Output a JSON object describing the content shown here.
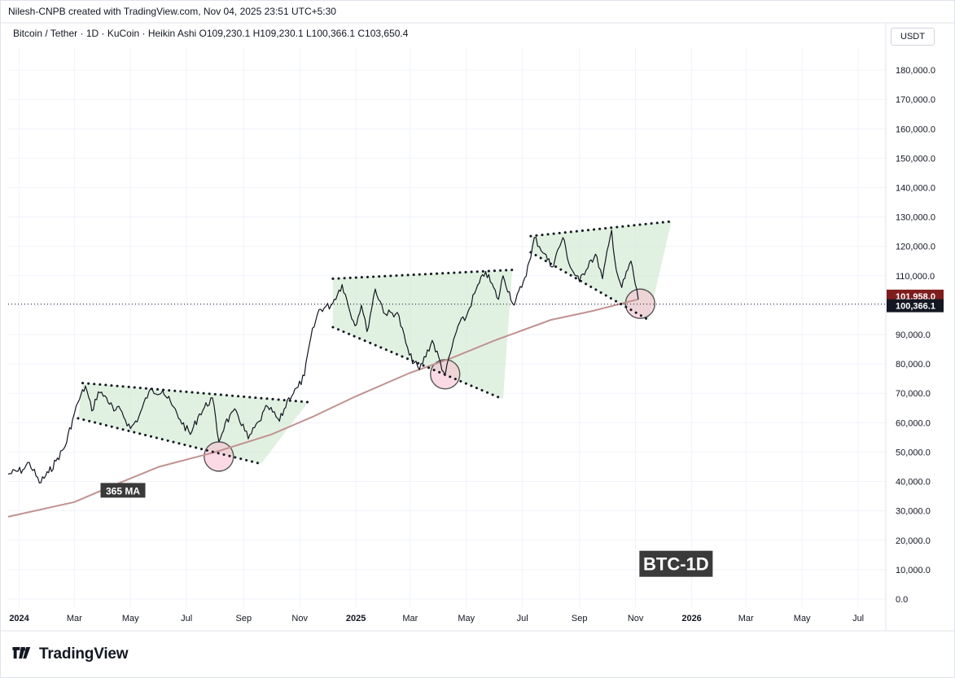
{
  "header": {
    "creator": "Nilesh-CNPB created with TradingView.com, Nov 04, 2025 23:51 UTC+5:30",
    "symbol_line": "Bitcoin / Tether · 1D · KuCoin · Heikin Ashi  O109,230.1  H109,230.1  L100,366.1  C103,650.4",
    "currency": "USDT"
  },
  "footer": {
    "brand": "TradingView"
  },
  "chart_data": {
    "type": "line",
    "title": "Bitcoin / Tether · 1D · KuCoin · Heikin Ashi",
    "ylim": [
      0,
      185000
    ],
    "xlim": [
      "2023-12-20",
      "2026-07-31"
    ],
    "y_ticks": [
      0,
      10000,
      20000,
      30000,
      40000,
      50000,
      60000,
      70000,
      80000,
      90000,
      100000,
      110000,
      120000,
      130000,
      140000,
      150000,
      160000,
      170000,
      180000
    ],
    "y_tick_labels": [
      "0.0",
      "10,000.0",
      "20,000.0",
      "30,000.0",
      "40,000.0",
      "50,000.0",
      "60,000.0",
      "70,000.0",
      "80,000.0",
      "90,000.0",
      "110,000.0",
      "120,000.0",
      "130,000.0",
      "140,000.0",
      "150,000.0",
      "160,000.0",
      "170,000.0",
      "180,000.0"
    ],
    "x_ticks": [
      {
        "date": "2024-01-01",
        "label": "2024",
        "bold": true
      },
      {
        "date": "2024-03-01",
        "label": "Mar"
      },
      {
        "date": "2024-05-01",
        "label": "May"
      },
      {
        "date": "2024-07-01",
        "label": "Jul"
      },
      {
        "date": "2024-09-01",
        "label": "Sep"
      },
      {
        "date": "2024-11-01",
        "label": "Nov"
      },
      {
        "date": "2025-01-01",
        "label": "2025",
        "bold": true
      },
      {
        "date": "2025-03-01",
        "label": "Mar"
      },
      {
        "date": "2025-05-01",
        "label": "May"
      },
      {
        "date": "2025-07-01",
        "label": "Jul"
      },
      {
        "date": "2025-09-01",
        "label": "Sep"
      },
      {
        "date": "2025-11-01",
        "label": "Nov"
      },
      {
        "date": "2026-01-01",
        "label": "2026",
        "bold": true
      },
      {
        "date": "2026-03-01",
        "label": "Mar"
      },
      {
        "date": "2026-05-01",
        "label": "May"
      },
      {
        "date": "2026-07-01",
        "label": "Jul"
      }
    ],
    "series": [
      {
        "color": "#131722",
        "points": [
          [
            "2023-12-20",
            42500
          ],
          [
            "2024-01-05",
            44000
          ],
          [
            "2024-01-12",
            46500
          ],
          [
            "2024-01-23",
            39500
          ],
          [
            "2024-02-02",
            43000
          ],
          [
            "2024-02-10",
            47000
          ],
          [
            "2024-02-20",
            52000
          ],
          [
            "2024-02-28",
            61000
          ],
          [
            "2024-03-05",
            67000
          ],
          [
            "2024-03-13",
            72500
          ],
          [
            "2024-03-20",
            64000
          ],
          [
            "2024-03-27",
            70500
          ],
          [
            "2024-04-05",
            68500
          ],
          [
            "2024-04-13",
            64000
          ],
          [
            "2024-04-20",
            64500
          ],
          [
            "2024-05-01",
            58000
          ],
          [
            "2024-05-10",
            62000
          ],
          [
            "2024-05-21",
            70500
          ],
          [
            "2024-06-05",
            71000
          ],
          [
            "2024-06-15",
            66000
          ],
          [
            "2024-06-24",
            61000
          ],
          [
            "2024-07-05",
            56000
          ],
          [
            "2024-07-15",
            63000
          ],
          [
            "2024-07-29",
            68500
          ],
          [
            "2024-08-05",
            53500
          ],
          [
            "2024-08-12",
            60000
          ],
          [
            "2024-08-24",
            64000
          ],
          [
            "2024-09-06",
            54500
          ],
          [
            "2024-09-18",
            60500
          ],
          [
            "2024-09-27",
            65500
          ],
          [
            "2024-10-10",
            60500
          ],
          [
            "2024-10-20",
            68500
          ],
          [
            "2024-10-30",
            72000
          ],
          [
            "2024-11-06",
            76000
          ],
          [
            "2024-11-13",
            89000
          ],
          [
            "2024-11-22",
            98500
          ],
          [
            "2024-12-05",
            100000
          ],
          [
            "2024-12-17",
            107000
          ],
          [
            "2024-12-31",
            93000
          ],
          [
            "2025-01-07",
            100000
          ],
          [
            "2025-01-13",
            91000
          ],
          [
            "2025-01-22",
            105500
          ],
          [
            "2025-02-02",
            97000
          ],
          [
            "2025-02-15",
            97500
          ],
          [
            "2025-02-28",
            83000
          ],
          [
            "2025-03-11",
            78000
          ],
          [
            "2025-03-25",
            88000
          ],
          [
            "2025-04-08",
            76000
          ],
          [
            "2025-04-14",
            84000
          ],
          [
            "2025-04-22",
            93000
          ],
          [
            "2025-05-01",
            96000
          ],
          [
            "2025-05-10",
            104000
          ],
          [
            "2025-05-22",
            111500
          ],
          [
            "2025-06-05",
            102000
          ],
          [
            "2025-06-10",
            110000
          ],
          [
            "2025-06-22",
            100000
          ],
          [
            "2025-07-02",
            108000
          ],
          [
            "2025-07-10",
            116000
          ],
          [
            "2025-07-14",
            123000
          ],
          [
            "2025-07-25",
            117500
          ],
          [
            "2025-08-02",
            113000
          ],
          [
            "2025-08-14",
            123000
          ],
          [
            "2025-08-22",
            113000
          ],
          [
            "2025-09-01",
            108000
          ],
          [
            "2025-09-12",
            115000
          ],
          [
            "2025-09-20",
            116500
          ],
          [
            "2025-09-26",
            109000
          ],
          [
            "2025-10-06",
            125500
          ],
          [
            "2025-10-11",
            112000
          ],
          [
            "2025-10-17",
            106000
          ],
          [
            "2025-10-27",
            115000
          ],
          [
            "2025-11-04",
            101958
          ]
        ]
      },
      {
        "name": "365 MA",
        "color": "#c19291",
        "points": [
          [
            "2023-12-20",
            28000
          ],
          [
            "2024-03-01",
            33000
          ],
          [
            "2024-04-15",
            39000
          ],
          [
            "2024-06-01",
            45000
          ],
          [
            "2024-08-01",
            50000
          ],
          [
            "2024-10-01",
            56000
          ],
          [
            "2024-11-15",
            62000
          ],
          [
            "2025-01-01",
            69000
          ],
          [
            "2025-03-01",
            77000
          ],
          [
            "2025-04-15",
            82000
          ],
          [
            "2025-06-01",
            88000
          ],
          [
            "2025-08-01",
            95000
          ],
          [
            "2025-09-15",
            98000
          ],
          [
            "2025-11-04",
            102000
          ]
        ]
      }
    ],
    "last_price_markers": [
      {
        "value": 101958.0,
        "label": "101,958.0",
        "color": "#7f1d1d"
      },
      {
        "value": 100366.1,
        "label": "100,366.1",
        "color": "#131722"
      }
    ],
    "annotations": [
      {
        "text": "365 MA",
        "date": "2024-04-25",
        "value": 37000
      },
      {
        "text": "BTC-1D",
        "date": "2025-12-15",
        "value": 12000
      }
    ],
    "patterns": [
      {
        "upper": [
          [
            "2024-03-10",
            73500
          ],
          [
            "2024-11-10",
            67000
          ]
        ],
        "lower": [
          [
            "2024-03-05",
            61500
          ],
          [
            "2024-09-20",
            46000
          ]
        ]
      },
      {
        "upper": [
          [
            "2024-12-07",
            109000
          ],
          [
            "2025-06-20",
            112000
          ]
        ],
        "lower": [
          [
            "2024-12-07",
            92500
          ],
          [
            "2025-06-10",
            68000
          ]
        ]
      },
      {
        "upper": [
          [
            "2025-07-10",
            123500
          ],
          [
            "2025-12-10",
            128500
          ]
        ],
        "lower": [
          [
            "2025-07-10",
            118000
          ],
          [
            "2025-11-15",
            95000
          ]
        ]
      }
    ],
    "circles": [
      {
        "date": "2024-08-05",
        "value": 48500
      },
      {
        "date": "2025-04-08",
        "value": 76500
      },
      {
        "date": "2025-11-06",
        "value": 100500
      }
    ]
  }
}
